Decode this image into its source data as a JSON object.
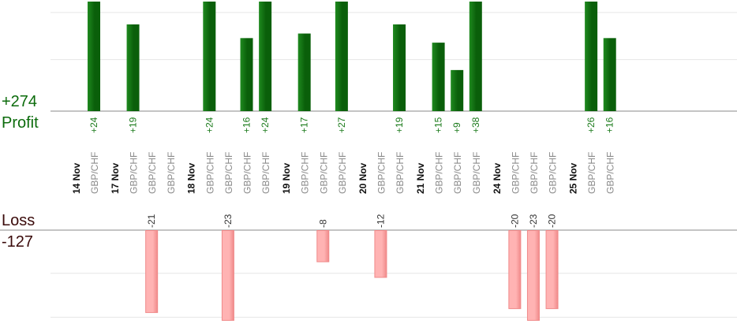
{
  "summary": {
    "profit_total": "+274",
    "profit_label": "Profit",
    "loss_label": "Loss",
    "loss_total": "-127"
  },
  "colors": {
    "profit_bar": "#0a5f0a",
    "profit_bar_light": "#1f8a1f",
    "profit_text": "#1a7a1a",
    "loss_bar": "#ffb3b3",
    "loss_bar_edge": "#f08a8a",
    "loss_text": "#333333",
    "date_text": "#111111",
    "pair_text": "#8a8a8a",
    "axis": "#888888",
    "grid": "#e6e6e6"
  },
  "chart_data": {
    "type": "bar",
    "title": "",
    "profit_total": 274,
    "loss_total": -127,
    "date_labels": [
      "14 Nov",
      "17 Nov",
      "18 Nov",
      "19 Nov",
      "20 Nov",
      "21 Nov",
      "24 Nov",
      "25 Nov"
    ],
    "trades": [
      {
        "date": "14 Nov",
        "pair": "GBP/CHF",
        "value": 24
      },
      {
        "date": "17 Nov",
        "pair": "GBP/CHF",
        "value": 19
      },
      {
        "date": "17 Nov",
        "pair": "GBP/CHF",
        "value": -21
      },
      {
        "date": "17 Nov",
        "pair": "GBP/CHF",
        "value": null
      },
      {
        "date": "18 Nov",
        "pair": "GBP/CHF",
        "value": 24
      },
      {
        "date": "18 Nov",
        "pair": "GBP/CHF",
        "value": -23
      },
      {
        "date": "18 Nov",
        "pair": "GBP/CHF",
        "value": 16
      },
      {
        "date": "18 Nov",
        "pair": "GBP/CHF",
        "value": 24
      },
      {
        "date": "19 Nov",
        "pair": "GBP/CHF",
        "value": 17
      },
      {
        "date": "19 Nov",
        "pair": "GBP/CHF",
        "value": -8
      },
      {
        "date": "19 Nov",
        "pair": "GBP/CHF",
        "value": 27
      },
      {
        "date": "20 Nov",
        "pair": "GBP/CHF",
        "value": -12
      },
      {
        "date": "20 Nov",
        "pair": "GBP/CHF",
        "value": 19
      },
      {
        "date": "21 Nov",
        "pair": "GBP/CHF",
        "value": 15
      },
      {
        "date": "21 Nov",
        "pair": "GBP/CHF",
        "value": 9
      },
      {
        "date": "21 Nov",
        "pair": "GBP/CHF",
        "value": 38
      },
      {
        "date": "24 Nov",
        "pair": "GBP/CHF",
        "value": -20
      },
      {
        "date": "24 Nov",
        "pair": "GBP/CHF",
        "value": -23
      },
      {
        "date": "24 Nov",
        "pair": "GBP/CHF",
        "value": -20
      },
      {
        "date": "25 Nov",
        "pair": "GBP/CHF",
        "value": 26
      },
      {
        "date": "25 Nov",
        "pair": "GBP/CHF",
        "value": 16
      }
    ],
    "profit_ylim": [
      0,
      24
    ],
    "loss_ylim": [
      -23,
      0
    ],
    "grid": true,
    "legend": "none"
  }
}
